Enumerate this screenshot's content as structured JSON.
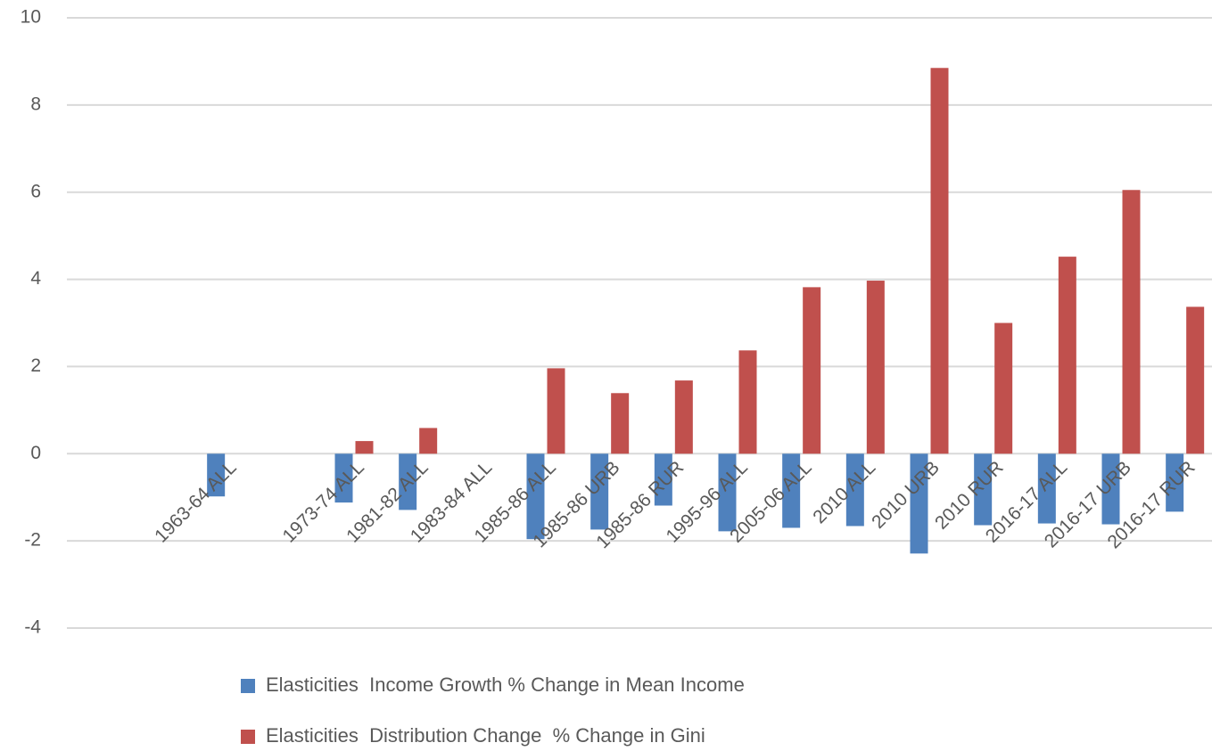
{
  "chart_data": {
    "type": "bar",
    "categories": [
      null,
      null,
      "1963-64 ALL",
      null,
      "1973-74 ALL",
      "1981-82 ALL",
      "1983-84 ALL",
      "1985-86 ALL",
      "1985-86 URB",
      "1985-86 RUR",
      "1995-96 ALL",
      "2005-06 ALL",
      "2010 ALL",
      "2010 URB",
      "2010 RUR",
      "2016-17 ALL",
      "2016-17 URB",
      "2016-17 RUR"
    ],
    "series": [
      {
        "name": "Elasticities  Income Growth % Change in Mean Income",
        "color": "#4f81bd",
        "values": [
          null,
          null,
          -0.98,
          null,
          -1.12,
          -1.29,
          null,
          -1.96,
          -1.74,
          -1.19,
          -1.78,
          -1.7,
          -1.66,
          -2.29,
          -1.64,
          -1.6,
          -1.62,
          -1.33
        ]
      },
      {
        "name": "Elasticities  Distribution Change  % Change in Gini",
        "color": "#c0504d",
        "values": [
          null,
          null,
          null,
          null,
          0.29,
          0.59,
          null,
          1.96,
          1.39,
          1.68,
          2.37,
          3.82,
          3.97,
          8.85,
          3.0,
          4.52,
          6.05,
          3.37
        ]
      }
    ],
    "ylim": [
      -4,
      10
    ],
    "yticks": [
      -4,
      -2,
      0,
      2,
      4,
      6,
      8,
      10
    ],
    "grid": true,
    "legend": "bottom"
  }
}
